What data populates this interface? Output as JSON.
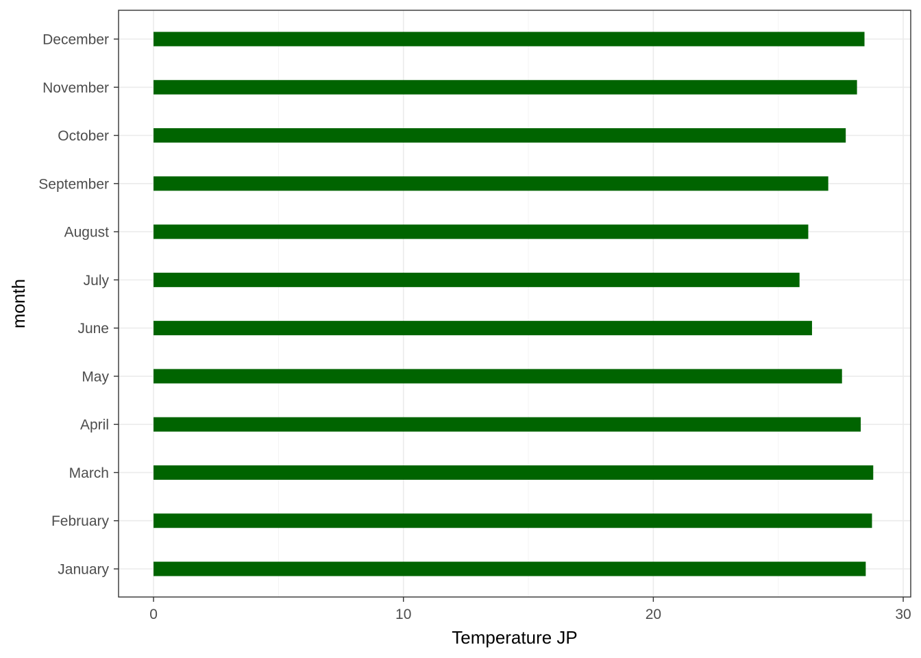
{
  "chart_data": {
    "type": "bar",
    "orientation": "horizontal",
    "categories": [
      "January",
      "February",
      "March",
      "April",
      "May",
      "June",
      "July",
      "August",
      "September",
      "October",
      "November",
      "December"
    ],
    "values": [
      28.5,
      28.75,
      28.8,
      28.3,
      27.55,
      26.35,
      25.85,
      26.2,
      27.0,
      27.7,
      28.15,
      28.45
    ],
    "title": "",
    "xlabel": "Temperature JP",
    "ylabel": "month",
    "xlim": [
      -1.4,
      30.3
    ],
    "xticks": [
      0,
      10,
      20,
      30
    ],
    "xtick_labels": [
      "0",
      "10",
      "20",
      "30"
    ],
    "bar_color": "#006400",
    "grid": true,
    "legend": "none"
  }
}
